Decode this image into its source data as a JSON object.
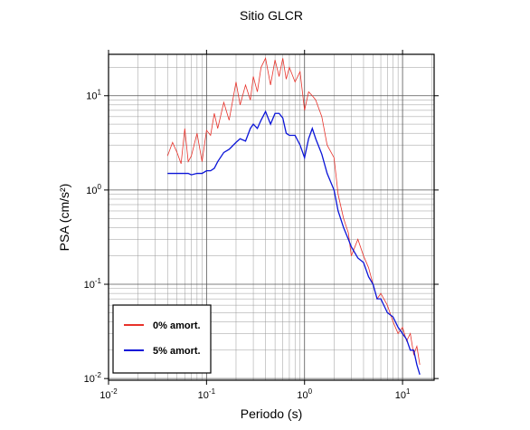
{
  "chart_data": {
    "type": "line",
    "title": "Sitio GLCR",
    "x_label": "Periodo (s)",
    "y_label": "PSA (cm/s²)",
    "xscale": "log",
    "yscale": "log",
    "grid": true,
    "xlim": [
      0.01,
      21
    ],
    "ylim": [
      0.0096,
      27.5
    ],
    "xticks": [
      {
        "value": 0.01,
        "label": "10",
        "exp": "-2"
      },
      {
        "value": 0.1,
        "label": "10",
        "exp": "-1"
      },
      {
        "value": 1,
        "label": "10",
        "exp": "0"
      },
      {
        "value": 10,
        "label": "10",
        "exp": "1"
      }
    ],
    "yticks": [
      {
        "value": 0.01,
        "label": "10",
        "exp": "-2"
      },
      {
        "value": 0.1,
        "label": "10",
        "exp": "-1"
      },
      {
        "value": 1,
        "label": "10",
        "exp": "0"
      },
      {
        "value": 10,
        "label": "10",
        "exp": "1"
      }
    ],
    "xminor": [
      0.02,
      0.03,
      0.04,
      0.05,
      0.06,
      0.07,
      0.08,
      0.09,
      0.2,
      0.3,
      0.4,
      0.5,
      0.6,
      0.7,
      0.8,
      0.9,
      2,
      3,
      4,
      5,
      6,
      7,
      8,
      9,
      20
    ],
    "yminor": [
      0.02,
      0.03,
      0.04,
      0.05,
      0.06,
      0.07,
      0.08,
      0.09,
      0.2,
      0.3,
      0.4,
      0.5,
      0.6,
      0.7,
      0.8,
      0.9,
      2,
      3,
      4,
      5,
      6,
      7,
      8,
      9,
      20
    ],
    "legend": "lower left",
    "x": [
      0.04,
      0.045,
      0.05,
      0.055,
      0.06,
      0.065,
      0.07,
      0.08,
      0.09,
      0.1,
      0.11,
      0.12,
      0.13,
      0.15,
      0.17,
      0.2,
      0.22,
      0.25,
      0.28,
      0.3,
      0.33,
      0.36,
      0.4,
      0.45,
      0.5,
      0.55,
      0.6,
      0.65,
      0.7,
      0.8,
      0.9,
      1.0,
      1.1,
      1.2,
      1.3,
      1.5,
      1.7,
      2.0,
      2.2,
      2.5,
      2.8,
      3.0,
      3.5,
      4.0,
      4.5,
      5.0,
      5.5,
      6.0,
      7.0,
      8.0,
      9.0,
      10,
      11,
      12,
      13,
      14,
      15
    ],
    "series": [
      {
        "name": "0% amort.",
        "color": "#e8322a",
        "width": 0.8,
        "values": [
          2.3,
          3.2,
          2.5,
          1.9,
          4.5,
          2.0,
          2.3,
          4.0,
          2.0,
          4.3,
          3.8,
          6.5,
          4.5,
          8.5,
          5.5,
          14,
          8,
          13,
          9,
          16,
          11,
          20,
          25,
          13,
          24,
          16,
          25,
          15,
          20,
          14,
          18,
          7,
          11,
          10,
          9,
          6,
          3,
          2.2,
          0.9,
          0.5,
          0.35,
          0.2,
          0.3,
          0.2,
          0.15,
          0.1,
          0.07,
          0.08,
          0.06,
          0.04,
          0.03,
          0.035,
          0.025,
          0.03,
          0.018,
          0.022,
          0.014
        ]
      },
      {
        "name": "5% amort.",
        "color": "#0a14d8",
        "width": 1.3,
        "values": [
          1.5,
          1.5,
          1.5,
          1.5,
          1.5,
          1.5,
          1.45,
          1.5,
          1.5,
          1.6,
          1.6,
          1.7,
          2.0,
          2.5,
          2.7,
          3.2,
          3.5,
          3.3,
          4.5,
          5.0,
          4.5,
          5.5,
          6.8,
          5.0,
          6.5,
          6.5,
          5.8,
          4.0,
          3.8,
          3.8,
          3.0,
          2.2,
          3.5,
          4.5,
          3.5,
          2.4,
          1.5,
          1.0,
          0.6,
          0.4,
          0.3,
          0.25,
          0.19,
          0.17,
          0.12,
          0.1,
          0.07,
          0.07,
          0.05,
          0.045,
          0.035,
          0.03,
          0.026,
          0.02,
          0.02,
          0.014,
          0.011
        ]
      }
    ]
  }
}
